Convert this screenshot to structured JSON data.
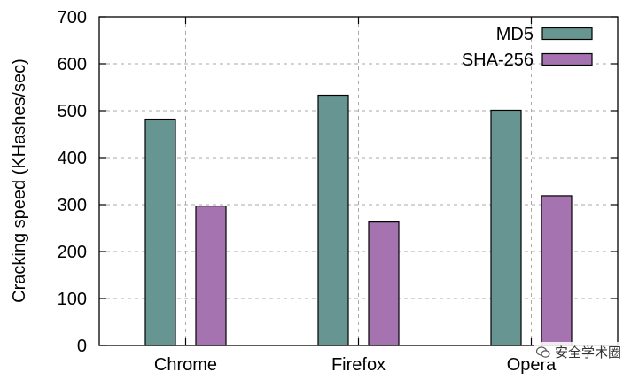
{
  "chart_data": {
    "type": "bar",
    "categories": [
      "Chrome",
      "Firefox",
      "Opera"
    ],
    "series": [
      {
        "name": "MD5",
        "values": [
          482,
          533,
          501
        ],
        "color": "#679692"
      },
      {
        "name": "SHA-256",
        "values": [
          297,
          263,
          319
        ],
        "color": "#a573b0"
      }
    ],
    "ylabel": "Cracking speed (KHashes/sec)",
    "xlabel": "",
    "title": "",
    "ylim": [
      0,
      700
    ],
    "yticks": [
      0,
      100,
      200,
      300,
      400,
      500,
      600,
      700
    ],
    "grid": true,
    "legend_position": "top-right"
  },
  "watermark": {
    "text": "安全学术圈",
    "icon": "wechat-icon"
  }
}
